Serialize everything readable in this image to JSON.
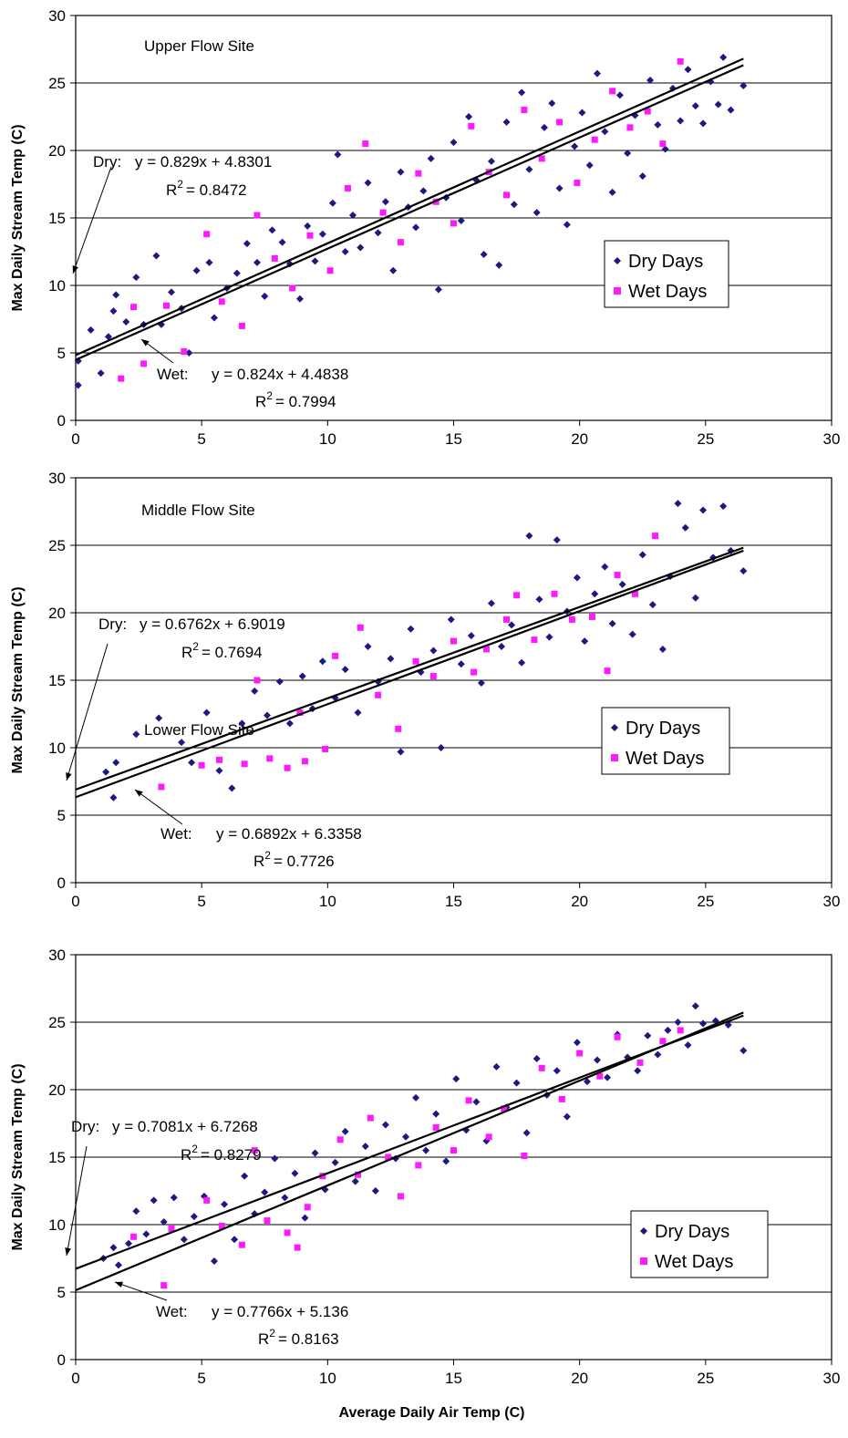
{
  "chart_data": [
    {
      "type": "scatter",
      "site": "Upper Flow Site",
      "ylabel": "Max Daily Stream Temp (C)",
      "xlabel": "",
      "xlim": [
        0,
        30
      ],
      "ylim": [
        0,
        30
      ],
      "x_ticks": [
        "0",
        "5",
        "10",
        "15",
        "20",
        "25",
        "30"
      ],
      "y_ticks": [
        "0",
        "5",
        "10",
        "15",
        "20",
        "25",
        "30"
      ],
      "grid": "horizontal",
      "legend": [
        "Dry Days",
        "Wet Days"
      ],
      "legend_position": "right",
      "colors": {
        "dry": "#1a1a80",
        "wet": "#ff19ff"
      },
      "fits": {
        "dry": {
          "label": "Dry:",
          "eq": "y = 0.829x + 4.8301",
          "r2": "= 0.8472",
          "slope": 0.829,
          "intercept": 4.8301
        },
        "wet": {
          "label": "Wet:",
          "eq": "y = 0.824x + 4.4838",
          "r2": "= 0.7994",
          "slope": 0.824,
          "intercept": 4.4838
        }
      },
      "dry_points": [
        [
          0.1,
          4.4
        ],
        [
          0.1,
          2.6
        ],
        [
          0.6,
          6.7
        ],
        [
          1.0,
          3.5
        ],
        [
          1.3,
          6.2
        ],
        [
          1.5,
          8.1
        ],
        [
          1.6,
          9.3
        ],
        [
          2.0,
          7.3
        ],
        [
          2.4,
          10.6
        ],
        [
          2.7,
          7.1
        ],
        [
          3.2,
          12.2
        ],
        [
          3.4,
          7.1
        ],
        [
          3.8,
          9.5
        ],
        [
          4.2,
          8.3
        ],
        [
          4.5,
          5.0
        ],
        [
          4.8,
          11.1
        ],
        [
          5.3,
          11.7
        ],
        [
          5.5,
          7.6
        ],
        [
          6.0,
          9.8
        ],
        [
          6.4,
          10.9
        ],
        [
          6.8,
          13.1
        ],
        [
          7.2,
          11.7
        ],
        [
          7.5,
          9.2
        ],
        [
          7.8,
          14.1
        ],
        [
          8.2,
          13.2
        ],
        [
          8.5,
          11.6
        ],
        [
          8.9,
          9.0
        ],
        [
          9.2,
          14.4
        ],
        [
          9.5,
          11.8
        ],
        [
          9.8,
          13.8
        ],
        [
          10.2,
          16.1
        ],
        [
          10.4,
          19.7
        ],
        [
          10.7,
          12.5
        ],
        [
          11.0,
          15.2
        ],
        [
          11.3,
          12.8
        ],
        [
          11.6,
          17.6
        ],
        [
          12.0,
          13.9
        ],
        [
          12.3,
          16.2
        ],
        [
          12.6,
          11.1
        ],
        [
          12.9,
          18.4
        ],
        [
          13.2,
          15.8
        ],
        [
          13.5,
          14.3
        ],
        [
          13.8,
          17.0
        ],
        [
          14.1,
          19.4
        ],
        [
          14.4,
          9.7
        ],
        [
          14.7,
          16.5
        ],
        [
          15.0,
          20.6
        ],
        [
          15.3,
          14.8
        ],
        [
          15.6,
          22.5
        ],
        [
          15.9,
          17.8
        ],
        [
          16.2,
          12.3
        ],
        [
          16.5,
          19.2
        ],
        [
          16.8,
          11.5
        ],
        [
          17.1,
          22.1
        ],
        [
          17.4,
          16.0
        ],
        [
          17.7,
          24.3
        ],
        [
          18.0,
          18.6
        ],
        [
          18.3,
          15.4
        ],
        [
          18.6,
          21.7
        ],
        [
          18.9,
          23.5
        ],
        [
          19.2,
          17.2
        ],
        [
          19.5,
          14.5
        ],
        [
          19.8,
          20.3
        ],
        [
          20.1,
          22.8
        ],
        [
          20.4,
          18.9
        ],
        [
          20.7,
          25.7
        ],
        [
          21.0,
          21.4
        ],
        [
          21.3,
          16.9
        ],
        [
          21.6,
          24.1
        ],
        [
          21.9,
          19.8
        ],
        [
          22.2,
          22.6
        ],
        [
          22.5,
          18.1
        ],
        [
          22.8,
          25.2
        ],
        [
          23.1,
          21.9
        ],
        [
          23.4,
          20.1
        ],
        [
          23.7,
          24.6
        ],
        [
          24.0,
          22.2
        ],
        [
          24.3,
          26.0
        ],
        [
          24.6,
          23.3
        ],
        [
          24.9,
          22.0
        ],
        [
          25.2,
          25.1
        ],
        [
          25.5,
          23.4
        ],
        [
          25.7,
          26.9
        ],
        [
          26.0,
          23.0
        ],
        [
          26.5,
          24.8
        ]
      ],
      "wet_points": [
        [
          1.8,
          3.1
        ],
        [
          2.3,
          8.4
        ],
        [
          2.7,
          4.2
        ],
        [
          3.6,
          8.5
        ],
        [
          4.3,
          5.1
        ],
        [
          5.2,
          13.8
        ],
        [
          5.8,
          8.8
        ],
        [
          6.6,
          7.0
        ],
        [
          7.2,
          15.2
        ],
        [
          7.9,
          12.0
        ],
        [
          8.6,
          9.8
        ],
        [
          9.3,
          13.7
        ],
        [
          10.1,
          11.1
        ],
        [
          10.8,
          17.2
        ],
        [
          11.5,
          20.5
        ],
        [
          12.2,
          15.4
        ],
        [
          12.9,
          13.2
        ],
        [
          13.6,
          18.3
        ],
        [
          14.3,
          16.2
        ],
        [
          15.0,
          14.6
        ],
        [
          15.7,
          21.8
        ],
        [
          16.4,
          18.4
        ],
        [
          17.1,
          16.7
        ],
        [
          17.8,
          23.0
        ],
        [
          18.5,
          19.4
        ],
        [
          19.2,
          22.1
        ],
        [
          19.9,
          17.6
        ],
        [
          20.6,
          20.8
        ],
        [
          21.3,
          24.4
        ],
        [
          22.0,
          21.7
        ],
        [
          22.7,
          22.9
        ],
        [
          23.3,
          20.5
        ],
        [
          24.0,
          26.6
        ]
      ]
    },
    {
      "type": "scatter",
      "site": "Middle Flow Site",
      "ylabel": "Max Daily Stream Temp (C)",
      "xlabel": "",
      "xlim": [
        0,
        30
      ],
      "ylim": [
        0,
        30
      ],
      "x_ticks": [
        "0",
        "5",
        "10",
        "15",
        "20",
        "25",
        "30"
      ],
      "y_ticks": [
        "0",
        "5",
        "10",
        "15",
        "20",
        "25",
        "30"
      ],
      "grid": "horizontal",
      "legend": [
        "Dry Days",
        "Wet Days"
      ],
      "legend_position": "right",
      "colors": {
        "dry": "#1a1a80",
        "wet": "#ff19ff"
      },
      "fits": {
        "dry": {
          "label": "Dry:",
          "eq": "y = 0.6762x + 6.9019",
          "r2": "= 0.7694",
          "slope": 0.6762,
          "intercept": 6.9019
        },
        "wet": {
          "label": "Wet:",
          "eq": "y = 0.6892x + 6.3358",
          "r2": "= 0.7726",
          "slope": 0.6892,
          "intercept": 6.3358
        }
      },
      "dry_points": [
        [
          1.2,
          8.2
        ],
        [
          1.5,
          6.3
        ],
        [
          1.6,
          8.9
        ],
        [
          2.4,
          11.0
        ],
        [
          3.3,
          12.2
        ],
        [
          4.2,
          10.4
        ],
        [
          4.6,
          8.9
        ],
        [
          5.2,
          12.6
        ],
        [
          5.7,
          8.3
        ],
        [
          6.2,
          7.0
        ],
        [
          6.6,
          11.8
        ],
        [
          7.1,
          14.2
        ],
        [
          7.6,
          12.4
        ],
        [
          8.1,
          14.9
        ],
        [
          8.5,
          11.8
        ],
        [
          9.0,
          15.3
        ],
        [
          9.4,
          12.9
        ],
        [
          9.8,
          16.4
        ],
        [
          10.3,
          13.7
        ],
        [
          10.7,
          15.8
        ],
        [
          11.2,
          12.6
        ],
        [
          11.6,
          17.5
        ],
        [
          12.0,
          14.9
        ],
        [
          12.5,
          16.6
        ],
        [
          12.9,
          9.7
        ],
        [
          13.3,
          18.8
        ],
        [
          13.7,
          15.6
        ],
        [
          14.2,
          17.2
        ],
        [
          14.5,
          10.0
        ],
        [
          14.9,
          19.5
        ],
        [
          15.3,
          16.2
        ],
        [
          15.7,
          18.3
        ],
        [
          16.1,
          14.8
        ],
        [
          16.5,
          20.7
        ],
        [
          16.9,
          17.5
        ],
        [
          17.3,
          19.1
        ],
        [
          17.7,
          16.3
        ],
        [
          18.0,
          25.7
        ],
        [
          18.4,
          21.0
        ],
        [
          18.8,
          18.2
        ],
        [
          19.1,
          25.4
        ],
        [
          19.5,
          20.1
        ],
        [
          19.9,
          22.6
        ],
        [
          20.2,
          17.9
        ],
        [
          20.6,
          21.4
        ],
        [
          21.0,
          23.4
        ],
        [
          21.3,
          19.2
        ],
        [
          21.7,
          22.1
        ],
        [
          22.1,
          18.4
        ],
        [
          22.5,
          24.3
        ],
        [
          22.9,
          20.6
        ],
        [
          23.3,
          17.3
        ],
        [
          23.6,
          22.7
        ],
        [
          23.9,
          28.1
        ],
        [
          24.2,
          26.3
        ],
        [
          24.6,
          21.1
        ],
        [
          24.9,
          27.6
        ],
        [
          25.3,
          24.1
        ],
        [
          25.7,
          27.9
        ],
        [
          26.0,
          24.6
        ],
        [
          26.5,
          23.1
        ]
      ],
      "wet_points": [
        [
          3.4,
          7.1
        ],
        [
          5.0,
          8.7
        ],
        [
          5.7,
          9.1
        ],
        [
          6.7,
          8.8
        ],
        [
          7.2,
          15.0
        ],
        [
          7.7,
          9.2
        ],
        [
          8.4,
          8.5
        ],
        [
          8.9,
          12.6
        ],
        [
          9.1,
          9.0
        ],
        [
          9.9,
          9.9
        ],
        [
          10.3,
          16.8
        ],
        [
          11.3,
          18.9
        ],
        [
          12.0,
          13.9
        ],
        [
          12.8,
          11.4
        ],
        [
          13.5,
          16.4
        ],
        [
          14.2,
          15.3
        ],
        [
          15.0,
          17.9
        ],
        [
          15.8,
          15.6
        ],
        [
          16.3,
          17.3
        ],
        [
          17.1,
          19.5
        ],
        [
          17.5,
          21.3
        ],
        [
          18.2,
          18.0
        ],
        [
          19.0,
          21.4
        ],
        [
          19.7,
          19.5
        ],
        [
          20.5,
          19.7
        ],
        [
          21.1,
          15.7
        ],
        [
          21.5,
          22.8
        ],
        [
          22.2,
          21.4
        ],
        [
          23.0,
          25.7
        ]
      ]
    },
    {
      "type": "scatter",
      "site": "Lower Flow Site",
      "ylabel": "Max Daily Stream Temp (C)",
      "xlabel": "Average Daily Air Temp (C)",
      "xlim": [
        0,
        30
      ],
      "ylim": [
        0,
        30
      ],
      "x_ticks": [
        "0",
        "5",
        "10",
        "15",
        "20",
        "25",
        "30"
      ],
      "y_ticks": [
        "0",
        "5",
        "10",
        "15",
        "20",
        "25",
        "30"
      ],
      "grid": "horizontal",
      "legend": [
        "Dry Days",
        "Wet Days"
      ],
      "legend_position": "right",
      "colors": {
        "dry": "#1a1a80",
        "wet": "#ff19ff"
      },
      "fits": {
        "dry": {
          "label": "Dry:",
          "eq": "y = 0.7081x + 6.7268",
          "r2": "= 0.8279",
          "slope": 0.7081,
          "intercept": 6.7268
        },
        "wet": {
          "label": "Wet:",
          "eq": "y = 0.7766x + 5.136",
          "r2": "= 0.8163",
          "slope": 0.7766,
          "intercept": 5.136
        }
      },
      "dry_points": [
        [
          1.1,
          7.5
        ],
        [
          1.5,
          8.3
        ],
        [
          1.7,
          7.0
        ],
        [
          2.1,
          8.6
        ],
        [
          2.4,
          11.0
        ],
        [
          2.8,
          9.3
        ],
        [
          3.1,
          11.8
        ],
        [
          3.5,
          10.2
        ],
        [
          3.9,
          12.0
        ],
        [
          4.3,
          8.9
        ],
        [
          4.7,
          10.6
        ],
        [
          5.1,
          12.1
        ],
        [
          5.5,
          7.3
        ],
        [
          5.9,
          11.5
        ],
        [
          6.3,
          8.9
        ],
        [
          6.7,
          13.6
        ],
        [
          7.1,
          10.8
        ],
        [
          7.5,
          12.4
        ],
        [
          7.9,
          14.9
        ],
        [
          8.3,
          12.0
        ],
        [
          8.7,
          13.8
        ],
        [
          9.1,
          10.5
        ],
        [
          9.5,
          15.3
        ],
        [
          9.9,
          12.6
        ],
        [
          10.3,
          14.6
        ],
        [
          10.7,
          16.9
        ],
        [
          11.1,
          13.2
        ],
        [
          11.5,
          15.8
        ],
        [
          11.9,
          12.5
        ],
        [
          12.3,
          17.4
        ],
        [
          12.7,
          14.9
        ],
        [
          13.1,
          16.5
        ],
        [
          13.5,
          19.4
        ],
        [
          13.9,
          15.5
        ],
        [
          14.3,
          18.2
        ],
        [
          14.7,
          14.7
        ],
        [
          15.1,
          20.8
        ],
        [
          15.5,
          17.0
        ],
        [
          15.9,
          19.1
        ],
        [
          16.3,
          16.2
        ],
        [
          16.7,
          21.7
        ],
        [
          17.1,
          18.7
        ],
        [
          17.5,
          20.5
        ],
        [
          17.9,
          16.8
        ],
        [
          18.3,
          22.3
        ],
        [
          18.7,
          19.6
        ],
        [
          19.1,
          21.4
        ],
        [
          19.5,
          18.0
        ],
        [
          19.9,
          23.5
        ],
        [
          20.3,
          20.6
        ],
        [
          20.7,
          22.2
        ],
        [
          21.1,
          20.9
        ],
        [
          21.5,
          24.1
        ],
        [
          21.9,
          22.4
        ],
        [
          22.3,
          21.4
        ],
        [
          22.7,
          24.0
        ],
        [
          23.1,
          22.6
        ],
        [
          23.5,
          24.4
        ],
        [
          23.9,
          25.0
        ],
        [
          24.3,
          23.3
        ],
        [
          24.6,
          26.2
        ],
        [
          24.9,
          24.9
        ],
        [
          25.4,
          25.1
        ],
        [
          25.9,
          24.8
        ],
        [
          26.5,
          22.9
        ]
      ],
      "wet_points": [
        [
          2.3,
          9.1
        ],
        [
          3.5,
          5.5
        ],
        [
          3.8,
          9.7
        ],
        [
          5.2,
          11.8
        ],
        [
          5.8,
          9.9
        ],
        [
          6.6,
          8.5
        ],
        [
          7.1,
          15.5
        ],
        [
          7.6,
          10.3
        ],
        [
          8.4,
          9.4
        ],
        [
          8.8,
          8.3
        ],
        [
          9.2,
          11.3
        ],
        [
          9.8,
          13.6
        ],
        [
          10.5,
          16.3
        ],
        [
          11.2,
          13.7
        ],
        [
          11.7,
          17.9
        ],
        [
          12.4,
          15.0
        ],
        [
          12.9,
          12.1
        ],
        [
          13.6,
          14.4
        ],
        [
          14.3,
          17.2
        ],
        [
          15.0,
          15.5
        ],
        [
          15.6,
          19.2
        ],
        [
          16.4,
          16.5
        ],
        [
          17.0,
          18.6
        ],
        [
          17.8,
          15.1
        ],
        [
          18.5,
          21.6
        ],
        [
          19.3,
          19.3
        ],
        [
          20.0,
          22.7
        ],
        [
          20.8,
          21.0
        ],
        [
          21.5,
          23.9
        ],
        [
          22.4,
          22.0
        ],
        [
          23.3,
          23.6
        ],
        [
          24.0,
          24.4
        ]
      ]
    }
  ]
}
